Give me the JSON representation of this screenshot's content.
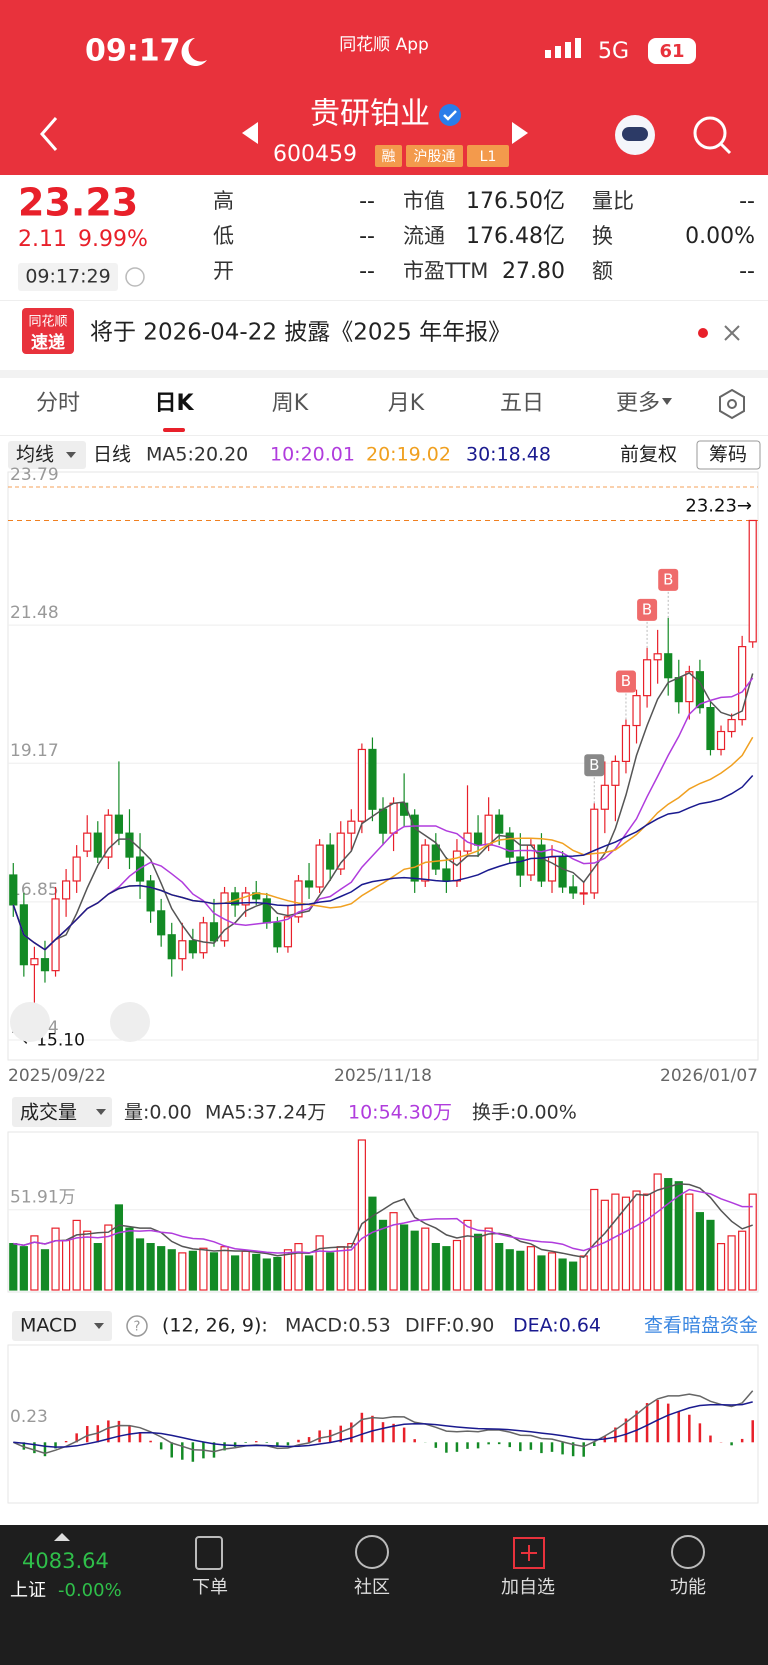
{
  "status": {
    "time": "09:17",
    "app": "同花顺 App",
    "network": "5G",
    "battery": "61"
  },
  "header": {
    "name": "贵研铂业",
    "code": "600459",
    "tags": [
      "融",
      "沪股通",
      "L1"
    ]
  },
  "quote": {
    "price": "23.23",
    "change": "2.11",
    "pct": "9.99%",
    "time": "09:17:29",
    "stats": [
      [
        {
          "label": "高",
          "value": "--"
        },
        {
          "label": "市值",
          "value": "176.50亿"
        },
        {
          "label": "量比",
          "value": "--"
        }
      ],
      [
        {
          "label": "低",
          "value": "--"
        },
        {
          "label": "流通",
          "value": "176.48亿"
        },
        {
          "label": "换",
          "value": "0.00%"
        }
      ],
      [
        {
          "label": "开",
          "value": "--"
        },
        {
          "label": "市盈TTM",
          "value": "27.80"
        },
        {
          "label": "额",
          "value": "--"
        }
      ]
    ]
  },
  "notice": {
    "badge": [
      "同花顺",
      "速递"
    ],
    "text": "将于 2026-04-22 披露《2025 年年报》"
  },
  "tabs": [
    "分时",
    "日K",
    "周K",
    "月K",
    "五日",
    "更多"
  ],
  "chart": {
    "selector": "均线",
    "kind": "日线",
    "ma5": "MA5:20.20",
    "ma10": "10:20.01",
    "ma20": "20:19.02",
    "ma30": "30:18.48",
    "adjust": "前复权",
    "chips": "筹码",
    "ylim": [
      14.54,
      23.79
    ],
    "yticks": [
      23.79,
      21.48,
      19.17,
      16.85,
      14.54
    ],
    "current": 23.23,
    "current_label": "23.23→",
    "low_label": "←15.10",
    "dates": [
      "2025/09/22",
      "2025/11/18",
      "2026/01/07"
    ],
    "up_color": "#e8202a",
    "down_color": "#138a25",
    "signals": [
      {
        "candle": 55,
        "text": "B"
      },
      {
        "candle": 58,
        "text": "B"
      },
      {
        "candle": 60,
        "text": "B"
      },
      {
        "candle": 62,
        "text": "B"
      }
    ],
    "candles": [
      [
        17.3,
        17.5,
        16.6,
        16.8
      ],
      [
        16.8,
        17.0,
        15.6,
        15.8
      ],
      [
        15.8,
        16.1,
        15.1,
        15.9
      ],
      [
        15.9,
        16.2,
        15.5,
        15.7
      ],
      [
        15.7,
        17.1,
        15.6,
        16.9
      ],
      [
        16.9,
        17.4,
        16.6,
        17.2
      ],
      [
        17.2,
        17.8,
        17.0,
        17.6
      ],
      [
        17.7,
        18.3,
        17.6,
        18.0
      ],
      [
        18.0,
        18.2,
        17.5,
        17.6
      ],
      [
        17.6,
        18.4,
        17.4,
        18.3
      ],
      [
        18.3,
        19.2,
        17.8,
        18.0
      ],
      [
        18.0,
        18.4,
        17.4,
        17.6
      ],
      [
        17.6,
        18.0,
        16.9,
        17.2
      ],
      [
        17.2,
        17.3,
        16.5,
        16.7
      ],
      [
        16.7,
        16.9,
        16.1,
        16.3
      ],
      [
        16.3,
        16.5,
        15.6,
        15.9
      ],
      [
        15.9,
        16.5,
        15.7,
        16.2
      ],
      [
        16.2,
        16.4,
        15.9,
        16.0
      ],
      [
        16.0,
        16.6,
        15.9,
        16.5
      ],
      [
        16.5,
        16.9,
        16.1,
        16.2
      ],
      [
        16.2,
        17.1,
        16.1,
        17.0
      ],
      [
        17.0,
        17.1,
        16.6,
        16.8
      ],
      [
        16.8,
        17.1,
        16.6,
        17.0
      ],
      [
        17.0,
        17.2,
        16.8,
        16.9
      ],
      [
        16.9,
        17.0,
        16.4,
        16.5
      ],
      [
        16.5,
        16.6,
        16.0,
        16.1
      ],
      [
        16.1,
        16.8,
        16.0,
        16.6
      ],
      [
        16.6,
        17.3,
        16.5,
        17.2
      ],
      [
        17.2,
        17.5,
        16.9,
        17.1
      ],
      [
        17.1,
        17.9,
        17.0,
        17.8
      ],
      [
        17.8,
        18.0,
        17.2,
        17.4
      ],
      [
        17.4,
        18.2,
        17.3,
        18.0
      ],
      [
        18.0,
        18.4,
        17.7,
        18.2
      ],
      [
        18.2,
        19.5,
        18.0,
        19.4
      ],
      [
        19.4,
        19.6,
        18.2,
        18.4
      ],
      [
        18.4,
        18.6,
        17.8,
        18.0
      ],
      [
        18.0,
        18.6,
        17.7,
        18.5
      ],
      [
        18.5,
        19.0,
        18.1,
        18.3
      ],
      [
        18.3,
        18.4,
        17.0,
        17.2
      ],
      [
        17.2,
        17.9,
        17.1,
        17.8
      ],
      [
        17.8,
        18.0,
        17.3,
        17.4
      ],
      [
        17.4,
        17.6,
        17.0,
        17.2
      ],
      [
        17.2,
        17.9,
        17.1,
        17.7
      ],
      [
        17.7,
        18.8,
        17.6,
        18.0
      ],
      [
        18.0,
        18.3,
        17.6,
        17.8
      ],
      [
        17.8,
        18.6,
        17.7,
        18.3
      ],
      [
        18.3,
        18.4,
        17.8,
        18.0
      ],
      [
        18.0,
        18.1,
        17.5,
        17.6
      ],
      [
        17.6,
        18.0,
        17.1,
        17.3
      ],
      [
        17.3,
        17.9,
        17.2,
        17.8
      ],
      [
        17.8,
        18.0,
        17.1,
        17.2
      ],
      [
        17.2,
        17.8,
        17.0,
        17.6
      ],
      [
        17.6,
        17.7,
        17.0,
        17.1
      ],
      [
        17.1,
        17.3,
        16.9,
        17.0
      ],
      [
        17.0,
        17.2,
        16.8,
        17.0
      ],
      [
        17.0,
        18.5,
        16.9,
        18.4
      ],
      [
        18.4,
        19.2,
        18.0,
        18.8
      ],
      [
        18.8,
        19.3,
        18.2,
        19.2
      ],
      [
        19.2,
        19.9,
        19.0,
        19.8
      ],
      [
        19.8,
        20.4,
        19.5,
        20.3
      ],
      [
        20.3,
        21.1,
        20.1,
        20.9
      ],
      [
        20.9,
        21.4,
        20.5,
        21.0
      ],
      [
        21.0,
        21.6,
        20.3,
        20.6
      ],
      [
        20.6,
        20.9,
        20.0,
        20.2
      ],
      [
        20.2,
        20.8,
        19.9,
        20.7
      ],
      [
        20.7,
        20.9,
        20.0,
        20.1
      ],
      [
        20.1,
        20.2,
        19.3,
        19.4
      ],
      [
        19.4,
        19.8,
        19.3,
        19.7
      ],
      [
        19.7,
        20.0,
        19.6,
        19.9
      ],
      [
        19.9,
        21.3,
        19.8,
        21.12
      ],
      [
        21.2,
        23.23,
        21.1,
        23.23
      ]
    ]
  },
  "volume": {
    "selector": "成交量",
    "vol": "量:0.00",
    "ma5": "MA5:37.24万",
    "ma10": "10:54.30万",
    "turnover": "换手:0.00%",
    "ylim": [
      0,
      97
    ],
    "yticks": [
      {
        "value": 51.91,
        "label": "51.91万"
      }
    ],
    "values": [
      30,
      28,
      35,
      26,
      40,
      32,
      45,
      38,
      30,
      42,
      55,
      40,
      33,
      30,
      28,
      26,
      24,
      25,
      27,
      24,
      28,
      22,
      25,
      23,
      20,
      21,
      26,
      30,
      22,
      35,
      24,
      28,
      30,
      97,
      60,
      45,
      50,
      42,
      38,
      40,
      30,
      28,
      32,
      45,
      36,
      40,
      30,
      26,
      25,
      28,
      22,
      24,
      20,
      18,
      22,
      65,
      58,
      62,
      60,
      64,
      62,
      75,
      72,
      70,
      62,
      50,
      45,
      30,
      35,
      38,
      62
    ]
  },
  "macd": {
    "selector": "MACD",
    "help": "?",
    "params": "(12, 26, 9):",
    "macd": "MACD:0.53",
    "diff": "DIFF:0.90",
    "dea": "DEA:0.64",
    "link": "查看暗盘资金",
    "ylim": [
      -1.0,
      1.6
    ],
    "yticks": [
      0.23
    ]
  },
  "nav": {
    "index": "4083.64",
    "index_name": "上证",
    "index_change": "-0.00%",
    "items": [
      "下单",
      "社区",
      "加自选",
      "功能"
    ]
  }
}
